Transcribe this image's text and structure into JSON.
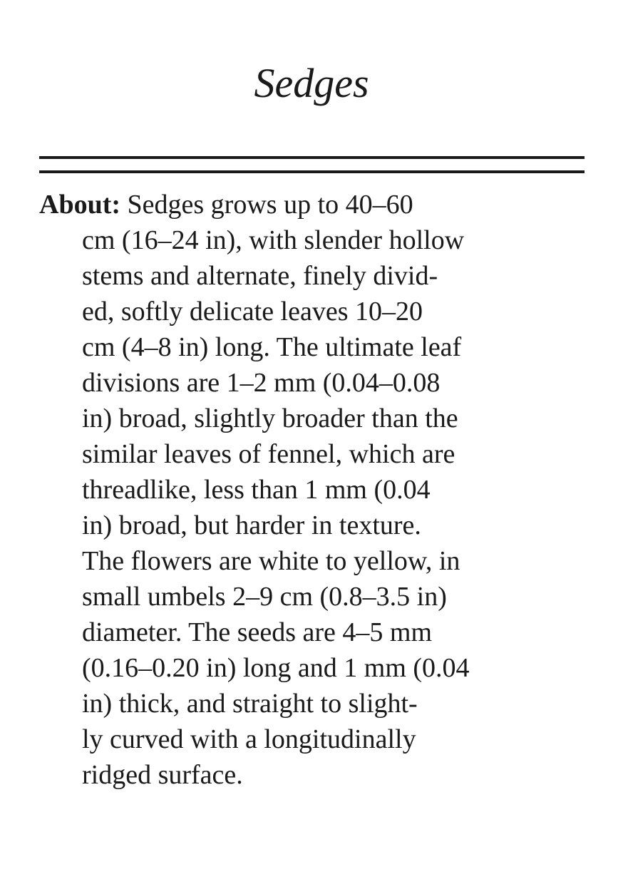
{
  "title": "Sedges",
  "entry": {
    "label": "About:",
    "first_line": " Sedges grows up to 40–60",
    "lines": [
      "cm (16–24 in), with slender hollow",
      "stems and alternate, finely divid-",
      "ed, softly delicate leaves 10–20",
      "cm (4–8 in) long. The ultimate leaf",
      "divisions are 1–2 mm (0.04–0.08",
      "in) broad, slightly broader than the",
      "similar leaves of fennel, which are",
      "threadlike, less than 1 mm (0.04",
      "in) broad, but harder in texture.",
      "The flowers are white to yellow, in",
      "small umbels 2–9 cm (0.8–3.5 in)",
      "diameter. The seeds are 4–5 mm",
      "(0.16–0.20 in) long and 1 mm (0.04",
      "in) thick, and straight to slight-",
      "ly curved with a longitudinally",
      "ridged surface."
    ]
  }
}
